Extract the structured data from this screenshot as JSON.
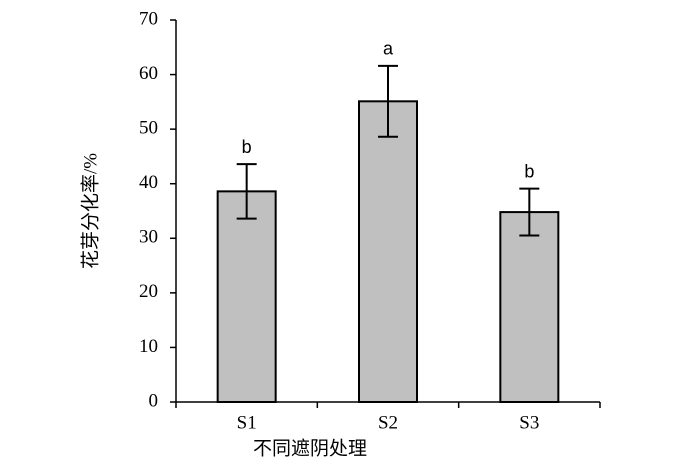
{
  "chart_data": {
    "type": "bar",
    "x_label": "不同遮阴处理",
    "y_label": "花芽分化率/%",
    "categories": [
      "S1",
      "S2",
      "S3"
    ],
    "values": [
      38.6,
      55.1,
      34.8
    ],
    "errors": [
      5.0,
      6.5,
      4.3
    ],
    "letters": [
      "b",
      "a",
      "b"
    ],
    "color": "#c0c0c0",
    "ylim": [
      0,
      70
    ],
    "yticks": [
      0,
      10,
      20,
      30,
      40,
      50,
      60,
      70
    ],
    "grid": false
  }
}
